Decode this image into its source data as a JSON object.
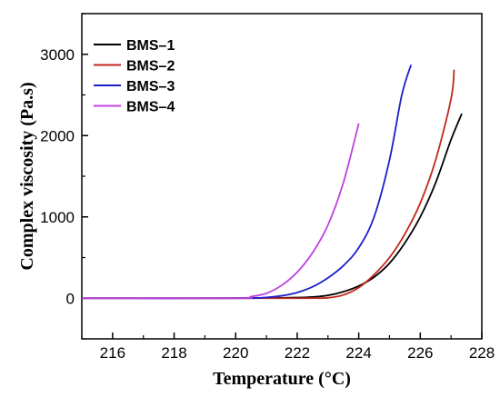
{
  "chart_data": {
    "type": "line",
    "title": "",
    "xlabel": "Temperature (°C)",
    "ylabel": "Complex viscosity (Pa.s)",
    "xlim": [
      215,
      228
    ],
    "ylim": [
      -500,
      3500
    ],
    "xticks": [
      216,
      218,
      220,
      222,
      224,
      226,
      228
    ],
    "yticks": [
      0,
      1000,
      2000,
      3000
    ],
    "grid": false,
    "legend": "top-left",
    "series": [
      {
        "name": "BMS–1",
        "color": "#000000",
        "x": [
          215,
          219,
          221,
          222,
          222.5,
          223,
          223.5,
          224,
          224.5,
          225,
          225.5,
          226,
          226.5,
          227,
          227.35
        ],
        "y": [
          0,
          0,
          2,
          8,
          15,
          35,
          80,
          150,
          260,
          430,
          680,
          1000,
          1420,
          1950,
          2270
        ]
      },
      {
        "name": "BMS–2",
        "color": "#c0281e",
        "x": [
          215,
          221,
          222,
          222.5,
          223,
          223.5,
          224,
          224.5,
          225,
          225.5,
          226,
          226.5,
          227,
          227.1
        ],
        "y": [
          0,
          0,
          0,
          1,
          5,
          40,
          130,
          290,
          500,
          790,
          1170,
          1700,
          2450,
          2810
        ]
      },
      {
        "name": "BMS–3",
        "color": "#1f1fc8",
        "x": [
          215,
          220,
          221,
          221.5,
          222,
          222.5,
          223,
          223.5,
          224,
          224.5,
          225,
          225.4,
          225.7
        ],
        "y": [
          0,
          0,
          10,
          30,
          70,
          140,
          250,
          400,
          620,
          1000,
          1700,
          2500,
          2870
        ]
      },
      {
        "name": "BMS–4",
        "color": "#c040e0",
        "x": [
          215,
          220,
          220.5,
          221,
          221.5,
          222,
          222.5,
          223,
          223.5,
          224
        ],
        "y": [
          0,
          0,
          20,
          60,
          160,
          320,
          560,
          900,
          1420,
          2150
        ]
      }
    ]
  }
}
